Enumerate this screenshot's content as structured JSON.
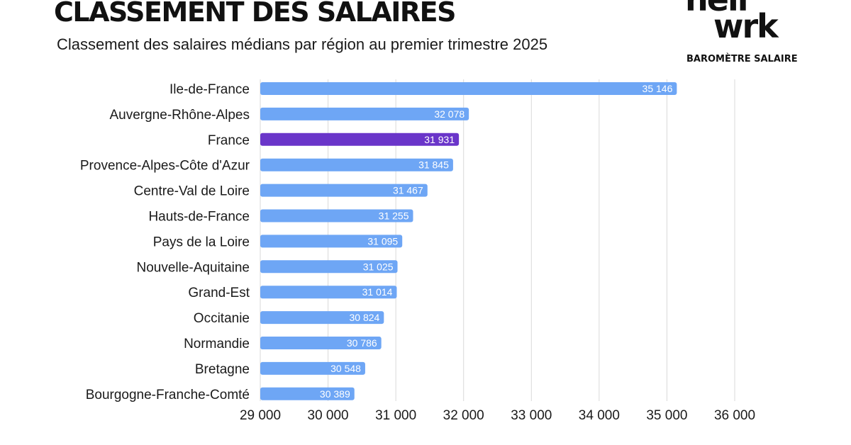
{
  "header": {
    "title": "CLASSEMENT DES SALAIRES",
    "subtitle": "Classement des salaires médians par région au premier trimestre 2025"
  },
  "brand": {
    "logo_line1": "hell",
    "logo_line2": "wrk",
    "tagline": "BAROMÈTRE SALAIRE"
  },
  "colors": {
    "bar": "#6ea6f5",
    "highlight": "#6a35c9",
    "grid": "#d9d9d9",
    "value_label": "#ffffff"
  },
  "chart_data": {
    "type": "bar",
    "orientation": "horizontal",
    "title": "Classement des salaires médians par région au premier trimestre 2025",
    "xlabel": "",
    "ylabel": "",
    "xlim": [
      29000,
      36000
    ],
    "xticks": [
      29000,
      30000,
      31000,
      32000,
      33000,
      34000,
      35000,
      36000
    ],
    "xtick_labels": [
      "29 000",
      "30 000",
      "31 000",
      "32 000",
      "33 000",
      "34 000",
      "35 000",
      "36 000"
    ],
    "grid": "vertical",
    "legend": "none",
    "highlight_category": "France",
    "categories": [
      "Ile-de-France",
      "Auvergne-Rhône-Alpes",
      "France",
      "Provence-Alpes-Côte d'Azur",
      "Centre-Val de Loire",
      "Hauts-de-France",
      "Pays de la Loire",
      "Nouvelle-Aquitaine",
      "Grand-Est",
      "Occitanie",
      "Normandie",
      "Bretagne",
      "Bourgogne-Franche-Comté"
    ],
    "values": [
      35146,
      32078,
      31931,
      31845,
      31467,
      31255,
      31095,
      31025,
      31014,
      30824,
      30786,
      30548,
      30389
    ],
    "value_labels": [
      "35 146",
      "32 078",
      "31 931",
      "31 845",
      "31 467",
      "31 255",
      "31 095",
      "31 025",
      "31 014",
      "30 824",
      "30 786",
      "30 548",
      "30 389"
    ]
  }
}
